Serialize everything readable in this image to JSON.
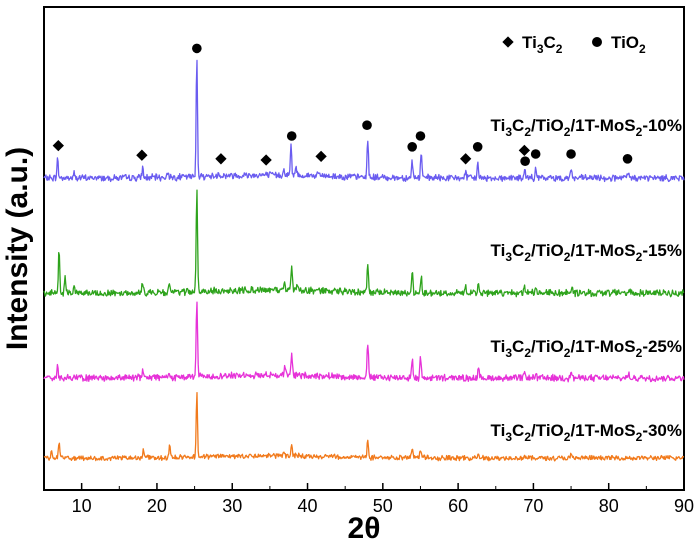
{
  "chart_data": {
    "type": "line",
    "xlabel": "2θ",
    "ylabel": "Intensity (a.u.)",
    "xlim": [
      5,
      90
    ],
    "x_ticks": [
      10,
      20,
      30,
      40,
      50,
      60,
      70,
      80,
      90
    ],
    "y_ticks_shown": false,
    "grid": false,
    "legend": {
      "placement": "top-right",
      "entries": [
        {
          "marker": "diamond",
          "label_main": "Ti",
          "sub": "3",
          "label_tail": "C",
          "sub2": "2",
          "text": "Ti3C2"
        },
        {
          "marker": "circle",
          "label_main": "TiO",
          "sub": "2",
          "label_tail": "",
          "sub2": "",
          "text": "TiO2"
        }
      ]
    },
    "series": [
      {
        "name": "Ti3C2/TiO2/1T-MoS2-10%",
        "color": "#6a5cf0",
        "offset": 3.0,
        "label_parts": [
          "Ti",
          "3",
          "C",
          "2",
          "/TiO",
          "2",
          "/1T-MoS",
          "2",
          "-10%"
        ],
        "peaks": [
          [
            6.8,
            0.16
          ],
          [
            9.0,
            0.04
          ],
          [
            18.1,
            0.08
          ],
          [
            21.5,
            0.05
          ],
          [
            25.3,
            1.0
          ],
          [
            28.2,
            0.03
          ],
          [
            36.9,
            0.05
          ],
          [
            37.8,
            0.24
          ],
          [
            38.5,
            0.07
          ],
          [
            41.5,
            0.03
          ],
          [
            48.0,
            0.32
          ],
          [
            53.9,
            0.14
          ],
          [
            55.1,
            0.22
          ],
          [
            61.0,
            0.05
          ],
          [
            62.6,
            0.12
          ],
          [
            68.9,
            0.06
          ],
          [
            70.3,
            0.07
          ],
          [
            75.0,
            0.08
          ],
          [
            82.6,
            0.04
          ]
        ],
        "ti3c2_markers": [
          [
            6.9,
            0.27
          ],
          [
            18.0,
            0.19
          ],
          [
            28.5,
            0.16
          ],
          [
            34.5,
            0.15
          ],
          [
            41.8,
            0.18
          ],
          [
            61.0,
            0.16
          ],
          [
            68.8,
            0.23
          ]
        ],
        "tio2_markers": [
          [
            25.3,
            1.08
          ],
          [
            37.9,
            0.35
          ],
          [
            47.9,
            0.44
          ],
          [
            53.9,
            0.26
          ],
          [
            55.0,
            0.35
          ],
          [
            62.6,
            0.26
          ],
          [
            68.9,
            0.14
          ],
          [
            70.3,
            0.2
          ],
          [
            75.0,
            0.2
          ],
          [
            82.5,
            0.16
          ]
        ]
      },
      {
        "name": "Ti3C2/TiO2/1T-MoS2-15%",
        "color": "#2ea31c",
        "offset": 2.0,
        "label_parts": [
          "Ti",
          "3",
          "C",
          "2",
          "/TiO",
          "2",
          "/1T-MoS",
          "2",
          "-15%"
        ],
        "peaks": [
          [
            7.0,
            0.36
          ],
          [
            7.8,
            0.14
          ],
          [
            9.0,
            0.05
          ],
          [
            18.1,
            0.09
          ],
          [
            21.6,
            0.07
          ],
          [
            25.3,
            0.83
          ],
          [
            36.9,
            0.05
          ],
          [
            37.9,
            0.21
          ],
          [
            38.6,
            0.06
          ],
          [
            48.0,
            0.24
          ],
          [
            53.9,
            0.18
          ],
          [
            55.1,
            0.15
          ],
          [
            61.0,
            0.06
          ],
          [
            62.7,
            0.1
          ],
          [
            68.8,
            0.05
          ],
          [
            70.3,
            0.04
          ],
          [
            75.1,
            0.05
          ],
          [
            82.7,
            0.03
          ]
        ]
      },
      {
        "name": "Ti3C2/TiO2/1T-MoS2-25%",
        "color": "#e632d8",
        "offset": 1.0,
        "label_parts": [
          "Ti",
          "3",
          "C",
          "2",
          "/TiO",
          "2",
          "/1T-MoS",
          "2",
          "-25%"
        ],
        "peaks": [
          [
            6.8,
            0.12
          ],
          [
            18.1,
            0.05
          ],
          [
            21.6,
            0.03
          ],
          [
            25.3,
            0.63
          ],
          [
            37.0,
            0.07
          ],
          [
            37.9,
            0.19
          ],
          [
            48.0,
            0.29
          ],
          [
            53.9,
            0.16
          ],
          [
            55.0,
            0.18
          ],
          [
            62.7,
            0.08
          ],
          [
            68.8,
            0.04
          ],
          [
            70.3,
            0.04
          ],
          [
            75.0,
            0.06
          ],
          [
            82.6,
            0.03
          ]
        ]
      },
      {
        "name": "Ti3C2/TiO2/1T-MoS2-30%",
        "color": "#f17a1c",
        "offset": 0.0,
        "label_parts": [
          "Ti",
          "3",
          "C",
          "2",
          "/TiO",
          "2",
          "/1T-MoS",
          "2",
          "-30%"
        ],
        "peaks": [
          [
            6.0,
            0.07
          ],
          [
            7.0,
            0.17
          ],
          [
            18.2,
            0.08
          ],
          [
            21.7,
            0.14
          ],
          [
            25.3,
            0.72
          ],
          [
            36.9,
            0.05
          ],
          [
            37.9,
            0.12
          ],
          [
            48.0,
            0.21
          ],
          [
            53.9,
            0.11
          ],
          [
            55.0,
            0.09
          ],
          [
            62.7,
            0.06
          ],
          [
            68.8,
            0.03
          ],
          [
            75.0,
            0.03
          ]
        ]
      }
    ]
  }
}
